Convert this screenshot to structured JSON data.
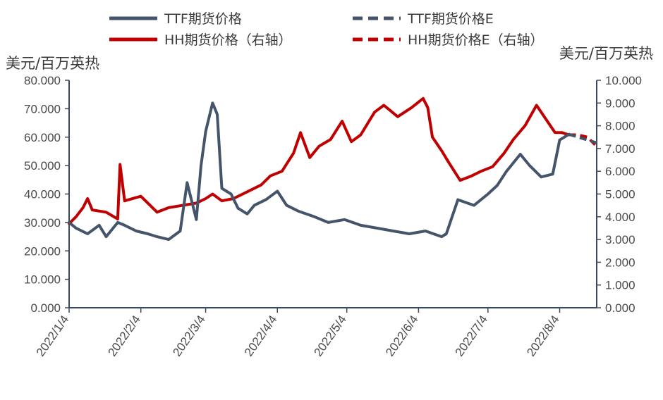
{
  "chart_data": {
    "type": "line",
    "units": {
      "left": "美元/百万英热",
      "right": "美元/百万英热"
    },
    "left_axis": {
      "ticks": [
        "0.000",
        "10.000",
        "20.000",
        "30.000",
        "40.000",
        "50.000",
        "60.000",
        "70.000",
        "80.000"
      ],
      "ylim": [
        0,
        80
      ]
    },
    "right_axis": {
      "ticks": [
        "0.000",
        "1.000",
        "2.000",
        "3.000",
        "4.000",
        "5.000",
        "6.000",
        "7.000",
        "8.000",
        "9.000",
        "10.000"
      ],
      "ylim": [
        0,
        10
      ]
    },
    "x_ticks": [
      "2022/1/4",
      "2022/2/4",
      "2022/3/4",
      "2022/4/4",
      "2022/5/4",
      "2022/6/4",
      "2022/7/4",
      "2022/8/4"
    ],
    "legend": [
      {
        "label": "TTF期货价格",
        "style": "solid",
        "color": "#44546a"
      },
      {
        "label": "TTF期货价格E",
        "style": "dashed",
        "color": "#44546a"
      },
      {
        "label": "HH期货价格（右轴）",
        "style": "solid",
        "color": "#c00000"
      },
      {
        "label": "HH期货价格E（右轴）",
        "style": "dashed",
        "color": "#c00000"
      }
    ],
    "series": [
      {
        "name": "TTF期货价格",
        "axis": "left",
        "color": "#44546a",
        "style": "solid",
        "x": [
          "2022/1/4",
          "2022/1/7",
          "2022/1/12",
          "2022/1/17",
          "2022/1/20",
          "2022/1/25",
          "2022/1/28",
          "2022/2/2",
          "2022/2/7",
          "2022/2/11",
          "2022/2/16",
          "2022/2/21",
          "2022/2/24",
          "2022/2/28",
          "2022/3/2",
          "2022/3/4",
          "2022/3/7",
          "2022/3/9",
          "2022/3/11",
          "2022/3/15",
          "2022/3/18",
          "2022/3/22",
          "2022/3/25",
          "2022/3/30",
          "2022/4/4",
          "2022/4/8",
          "2022/4/13",
          "2022/4/20",
          "2022/4/26",
          "2022/5/3",
          "2022/5/10",
          "2022/5/17",
          "2022/5/24",
          "2022/5/31",
          "2022/6/7",
          "2022/6/14",
          "2022/6/16",
          "2022/6/21",
          "2022/6/28",
          "2022/7/4",
          "2022/7/8",
          "2022/7/12",
          "2022/7/18",
          "2022/7/22",
          "2022/7/27",
          "2022/8/1",
          "2022/8/4",
          "2022/8/8"
        ],
        "y": [
          30,
          28,
          26,
          29,
          25,
          30,
          29,
          27,
          26,
          25,
          24,
          27,
          44,
          31,
          50,
          62,
          72,
          68,
          42,
          40,
          35,
          33,
          36,
          38,
          41,
          36,
          34,
          32,
          30,
          31,
          29,
          28,
          27,
          26,
          27,
          25,
          26,
          38,
          36,
          40,
          43,
          48,
          54,
          50,
          46,
          47,
          59,
          61
        ]
      },
      {
        "name": "TTF期货价格E",
        "axis": "left",
        "color": "#44546a",
        "style": "dashed",
        "x": [
          "2022/8/8",
          "2022/8/12",
          "2022/8/16",
          "2022/8/20"
        ],
        "y": [
          61,
          60,
          59,
          58
        ]
      },
      {
        "name": "HH期货价格（右轴）",
        "axis": "right",
        "color": "#c00000",
        "style": "solid",
        "x": [
          "2022/1/4",
          "2022/1/7",
          "2022/1/10",
          "2022/1/12",
          "2022/1/14",
          "2022/1/20",
          "2022/1/25",
          "2022/1/26",
          "2022/1/28",
          "2022/2/4",
          "2022/2/8",
          "2022/2/11",
          "2022/2/16",
          "2022/2/22",
          "2022/2/28",
          "2022/3/4",
          "2022/3/7",
          "2022/3/11",
          "2022/3/16",
          "2022/3/22",
          "2022/3/28",
          "2022/4/1",
          "2022/4/6",
          "2022/4/11",
          "2022/4/14",
          "2022/4/18",
          "2022/4/22",
          "2022/4/27",
          "2022/5/2",
          "2022/5/6",
          "2022/5/10",
          "2022/5/16",
          "2022/5/20",
          "2022/5/26",
          "2022/6/1",
          "2022/6/6",
          "2022/6/8",
          "2022/6/10",
          "2022/6/14",
          "2022/6/17",
          "2022/6/22",
          "2022/6/27",
          "2022/7/1",
          "2022/7/6",
          "2022/7/11",
          "2022/7/15",
          "2022/7/20",
          "2022/7/25",
          "2022/7/29",
          "2022/8/2",
          "2022/8/5",
          "2022/8/8"
        ],
        "y": [
          3.7,
          4.0,
          4.4,
          4.8,
          4.3,
          4.2,
          3.9,
          6.3,
          4.7,
          4.9,
          4.5,
          4.2,
          4.4,
          4.5,
          4.6,
          4.8,
          5.0,
          4.7,
          4.8,
          5.1,
          5.4,
          5.8,
          6.0,
          6.8,
          7.7,
          6.6,
          7.1,
          7.4,
          8.2,
          7.3,
          7.6,
          8.6,
          8.9,
          8.4,
          8.8,
          9.2,
          8.8,
          7.5,
          6.9,
          6.4,
          5.6,
          5.8,
          6.0,
          6.2,
          6.8,
          7.4,
          8.0,
          8.9,
          8.3,
          7.7,
          7.7,
          7.6
        ]
      },
      {
        "name": "HH期货价格E（右轴）",
        "axis": "right",
        "color": "#c00000",
        "style": "dashed",
        "x": [
          "2022/8/8",
          "2022/8/12",
          "2022/8/16",
          "2022/8/20"
        ],
        "y": [
          7.6,
          7.6,
          7.5,
          7.1
        ]
      }
    ],
    "grid": false,
    "legend_position": "top"
  }
}
